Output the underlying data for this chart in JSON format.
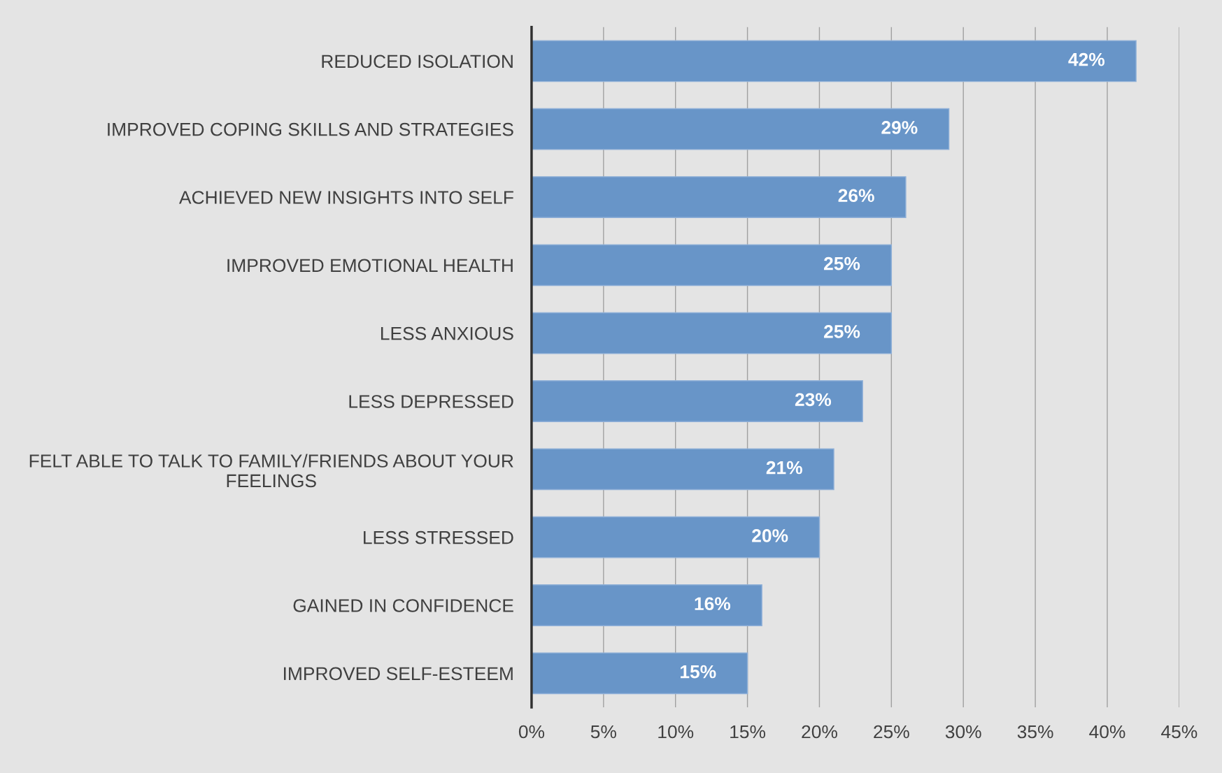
{
  "chart_data": {
    "type": "bar",
    "orientation": "horizontal",
    "categories": [
      "REDUCED ISOLATION",
      "IMPROVED COPING SKILLS AND STRATEGIES",
      "ACHIEVED NEW INSIGHTS INTO SELF",
      "IMPROVED EMOTIONAL HEALTH",
      "LESS ANXIOUS",
      "LESS DEPRESSED",
      "FELT ABLE TO TALK TO FAMILY/FRIENDS ABOUT YOUR\nFEELINGS",
      "LESS STRESSED",
      "GAINED IN CONFIDENCE",
      "IMPROVED SELF-ESTEEM"
    ],
    "values": [
      42,
      29,
      26,
      25,
      25,
      23,
      21,
      20,
      16,
      15
    ],
    "value_labels": [
      "42%",
      "29%",
      "26%",
      "25%",
      "25%",
      "23%",
      "21%",
      "20%",
      "16%",
      "15%"
    ],
    "color": "#6895c8",
    "xlim": [
      0,
      45
    ],
    "xticks": [
      {
        "value": 0,
        "label": "0%"
      },
      {
        "value": 5,
        "label": "5%"
      },
      {
        "value": 10,
        "label": "10%"
      },
      {
        "value": 15,
        "label": "15%"
      },
      {
        "value": 20,
        "label": "20%"
      },
      {
        "value": 25,
        "label": "25%"
      },
      {
        "value": 30,
        "label": "30%"
      },
      {
        "value": 35,
        "label": "35%"
      },
      {
        "value": 40,
        "label": "40%"
      },
      {
        "value": 45,
        "label": "45%"
      }
    ],
    "grid": "x",
    "legend": false
  }
}
